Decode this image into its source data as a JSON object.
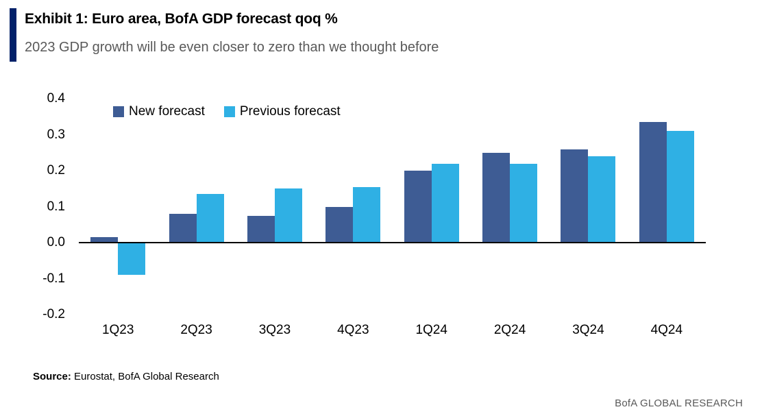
{
  "header": {
    "title": "Exhibit 1: Euro area, BofA GDP forecast qoq %",
    "subtitle": "2023 GDP growth will be even closer to zero than we thought before"
  },
  "footer": {
    "source_label": "Source:",
    "source_text": " Eurostat, BofA Global Research",
    "brand": "BofA GLOBAL RESEARCH"
  },
  "colors": {
    "accent_bar": "#012169",
    "new_forecast": "#3e5c94",
    "previous_forecast": "#2fb0e4",
    "zero_line": "#000000",
    "subtitle_text": "#595959",
    "brand_text": "#595959"
  },
  "chart_data": {
    "type": "bar",
    "title": "Exhibit 1: Euro area, BofA GDP forecast qoq %",
    "categories": [
      "1Q23",
      "2Q23",
      "3Q23",
      "4Q23",
      "1Q24",
      "2Q24",
      "3Q24",
      "4Q24"
    ],
    "series": [
      {
        "name": "New forecast",
        "color_key": "new_forecast",
        "values": [
          0.015,
          0.08,
          0.075,
          0.1,
          0.2,
          0.25,
          0.26,
          0.335
        ]
      },
      {
        "name": "Previous forecast",
        "color_key": "previous_forecast",
        "values": [
          -0.09,
          0.135,
          0.15,
          0.155,
          0.22,
          0.22,
          0.24,
          0.31
        ]
      }
    ],
    "yticks": [
      0.4,
      0.3,
      0.2,
      0.1,
      0.0,
      -0.1,
      -0.2
    ],
    "ytick_labels": [
      "0.4",
      "0.3",
      "0.2",
      "0.1",
      "0.0",
      "-0.1",
      "-0.2"
    ],
    "ylim": [
      -0.2,
      0.4
    ],
    "xlabel": "",
    "ylabel": "",
    "grid": false,
    "legend_position": "top-left"
  }
}
